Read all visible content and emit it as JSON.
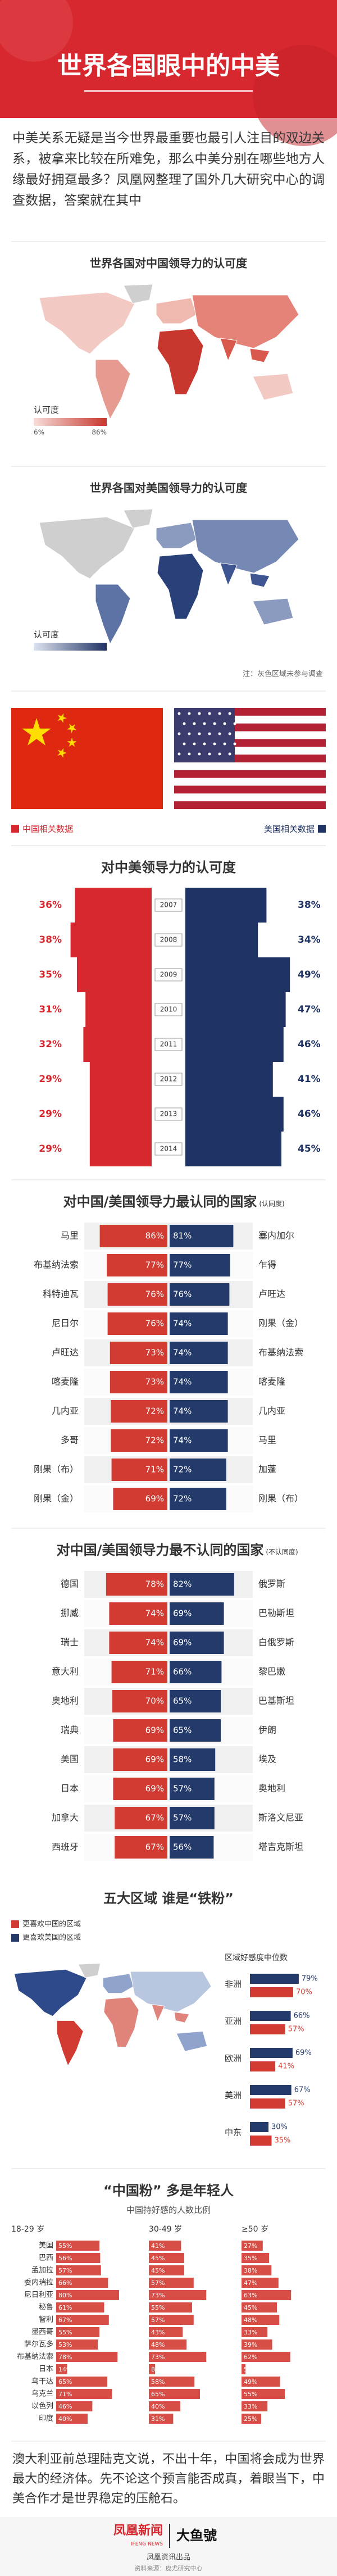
{
  "header": {
    "title": "世界各国眼中的中美"
  },
  "intro": "中美关系无疑是当今世界最重要也最引人注目的双边关系，被拿来比较在所难免，那么中美分别在哪些地方人缘最好拥趸最多？凤凰网整理了国外几大研究中心的调查数据，答案就在其中",
  "maps": [
    {
      "title": "世界各国对中国领导力的认可度",
      "legend_title": "认可度",
      "legend_min": "6%",
      "legend_max": "86%"
    },
    {
      "title": "世界各国对美国领导力的认可度",
      "legend_title": "认可度",
      "note": "注：灰色区域未参与调查"
    }
  ],
  "legend": {
    "china": "中国相关数据",
    "us": "美国相关数据"
  },
  "chart_data": [
    {
      "type": "butterfly",
      "title": "对中美领导力的认可度",
      "categories": [
        "2007",
        "2008",
        "2009",
        "2010",
        "2011",
        "2012",
        "2013",
        "2014"
      ],
      "series": [
        {
          "color": "#d7282f",
          "values": [
            36,
            38,
            35,
            31,
            32,
            29,
            29,
            29
          ],
          "value_labels": [
            "36%",
            "38%",
            "35%",
            "31%",
            "32%",
            "29%",
            "29%",
            "29%"
          ]
        },
        {
          "color": "#1f3264",
          "values": [
            38,
            34,
            49,
            47,
            46,
            41,
            46,
            45
          ],
          "value_labels": [
            "38%",
            "34%",
            "49%",
            "47%",
            "46%",
            "41%",
            "46%",
            "45%"
          ]
        }
      ],
      "xlim": [
        0,
        50
      ]
    },
    {
      "type": "paired-bar",
      "title": "对中国/美国领导力最认同的国家",
      "title_note": "(认同度)",
      "left_categories": [
        "马里",
        "布基纳法索",
        "科特迪瓦",
        "尼日尔",
        "卢旺达",
        "喀麦隆",
        "几内亚",
        "多哥",
        "刚果（布）",
        "刚果（金）"
      ],
      "right_categories": [
        "塞内加尔",
        "乍得",
        "卢旺达",
        "刚果（金）",
        "布基纳法索",
        "喀麦隆",
        "几内亚",
        "马里",
        "加蓬",
        "刚果（布）"
      ],
      "series": [
        {
          "color": "#d23b32",
          "values": [
            86,
            77,
            76,
            76,
            73,
            73,
            72,
            72,
            71,
            69
          ],
          "value_labels": [
            "86%",
            "77%",
            "76%",
            "76%",
            "73%",
            "73%",
            "72%",
            "72%",
            "71%",
            "69%"
          ]
        },
        {
          "color": "#233a6b",
          "values": [
            81,
            77,
            76,
            74,
            74,
            74,
            74,
            74,
            72,
            72
          ],
          "value_labels": [
            "81%",
            "77%",
            "76%",
            "74%",
            "74%",
            "74%",
            "74%",
            "74%",
            "72%",
            "72%"
          ]
        }
      ],
      "xlim": [
        0,
        100
      ]
    },
    {
      "type": "paired-bar",
      "title": "对中国/美国领导力最不认同的国家",
      "title_note": "(不认同度)",
      "left_categories": [
        "德国",
        "挪威",
        "瑞士",
        "意大利",
        "奥地利",
        "瑞典",
        "美国",
        "日本",
        "加拿大",
        "西班牙"
      ],
      "right_categories": [
        "俄罗斯",
        "巴勒斯坦",
        "白俄罗斯",
        "黎巴嫩",
        "巴基斯坦",
        "伊朗",
        "埃及",
        "奥地利",
        "斯洛文尼亚",
        "塔吉克斯坦"
      ],
      "series": [
        {
          "color": "#d23b32",
          "values": [
            78,
            74,
            74,
            71,
            70,
            69,
            69,
            69,
            67,
            67
          ],
          "value_labels": [
            "78%",
            "74%",
            "74%",
            "71%",
            "70%",
            "69%",
            "69%",
            "69%",
            "67%",
            "67%"
          ]
        },
        {
          "color": "#233a6b",
          "values": [
            82,
            69,
            69,
            66,
            65,
            65,
            58,
            57,
            57,
            56
          ],
          "value_labels": [
            "82%",
            "69%",
            "69%",
            "66%",
            "65%",
            "65%",
            "58%",
            "57%",
            "57%",
            "56%"
          ]
        }
      ],
      "xlim": [
        0,
        100
      ]
    },
    {
      "type": "region-bar",
      "title": "五大区域 谁是“铁粉”",
      "map_legend": [
        "更喜欢中国的区域",
        "更喜欢美国的区域"
      ],
      "panel_title": "区域好感度中位数",
      "categories": [
        "非洲",
        "亚洲",
        "欧洲",
        "美洲",
        "中东"
      ],
      "series": [
        {
          "color": "#233a6b",
          "values": [
            79,
            66,
            69,
            67,
            30
          ],
          "value_labels": [
            "79%",
            "66%",
            "69%",
            "67%",
            "30%"
          ]
        },
        {
          "color": "#d23b32",
          "values": [
            70,
            57,
            41,
            57,
            35
          ],
          "value_labels": [
            "70%",
            "57%",
            "41%",
            "57%",
            "35%"
          ]
        }
      ],
      "xlim": [
        0,
        100
      ]
    },
    {
      "type": "small-multiples",
      "title": "“中国粉” 多是年轻人",
      "subtitle": "中国持好感的人数比例",
      "categories": [
        "美国",
        "巴西",
        "孟加拉",
        "委内瑞拉",
        "尼日利亚",
        "秘鲁",
        "智利",
        "墨西哥",
        "萨尔瓦多",
        "布基纳法索",
        "日本",
        "乌干达",
        "乌克兰",
        "以色列",
        "印度"
      ],
      "series": [
        {
          "name": "18-29 岁",
          "color": "#d23b32",
          "values": [
            55,
            56,
            57,
            66,
            80,
            61,
            67,
            55,
            53,
            78,
            14,
            65,
            71,
            46,
            40
          ],
          "value_labels": [
            "55%",
            "56%",
            "57%",
            "66%",
            "80%",
            "61%",
            "67%",
            "55%",
            "53%",
            "78%",
            "14%",
            "65%",
            "71%",
            "46%",
            "40%"
          ]
        },
        {
          "name": "30-49 岁",
          "color": "#d23b32",
          "values": [
            41,
            45,
            45,
            57,
            73,
            55,
            57,
            43,
            48,
            73,
            8,
            58,
            65,
            40,
            31
          ],
          "value_labels": [
            "41%",
            "45%",
            "45%",
            "57%",
            "73%",
            "55%",
            "57%",
            "43%",
            "48%",
            "73%",
            "8%",
            "58%",
            "65%",
            "40%",
            "31%"
          ]
        },
        {
          "name": "≥50 岁",
          "color": "#d23b32",
          "values": [
            27,
            35,
            38,
            47,
            63,
            45,
            48,
            33,
            39,
            62,
            5,
            49,
            55,
            33,
            25
          ],
          "value_labels": [
            "27%",
            "35%",
            "38%",
            "47%",
            "63%",
            "45%",
            "48%",
            "33%",
            "39%",
            "62%",
            "5%",
            "49%",
            "55%",
            "33%",
            "25%"
          ]
        }
      ],
      "xlim": [
        0,
        100
      ]
    }
  ],
  "footer": {
    "text": "澳大利亚前总理陆克文说，不出十年，中国将会成为世界最大的经济体。先不论这个预言能否成真，着眼当下，中美合作才是世界稳定的压舱石。",
    "logo": "凤凰新闻",
    "logo_en": "IFENG NEWS",
    "partner": "大鱼號",
    "producer": "凤凰资讯出品",
    "credits": "资料来源：皮尤研究中心"
  }
}
